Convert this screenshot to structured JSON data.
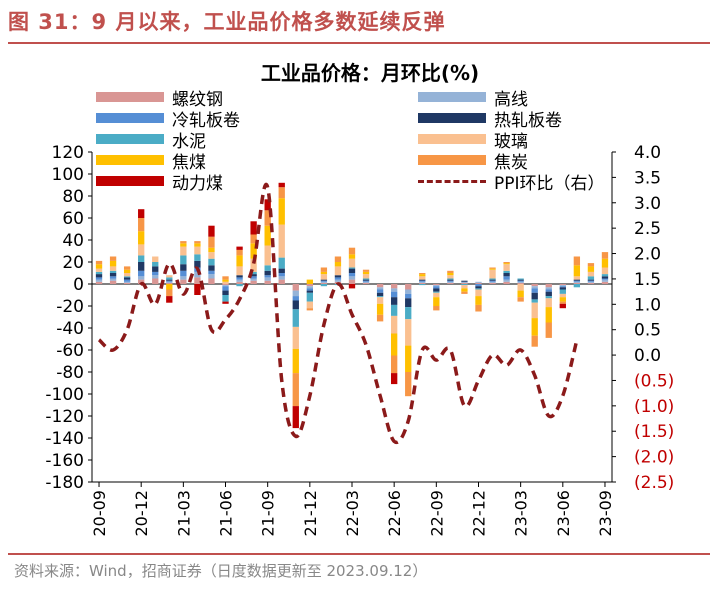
{
  "figure_title": "图 31：9 月以来，工业品价格多数延续反弹",
  "source": "资料来源：Wind，招商证券（日度数据更新至 2023.09.12）",
  "chart_data": {
    "type": "bar",
    "stacked": true,
    "title": "工业品价格：月环比(%)",
    "xlabel": "",
    "ylabel": "",
    "ylim": [
      -180,
      120
    ],
    "y2lim": [
      -2.5,
      4.0
    ],
    "yticks": [
      -180,
      -160,
      -140,
      -120,
      -100,
      -80,
      -60,
      -40,
      -20,
      0,
      20,
      40,
      60,
      80,
      100,
      120
    ],
    "y2ticks": [
      "(2.5)",
      "(2.0)",
      "(1.5)",
      "(1.0)",
      "(0.5)",
      "0.0",
      "0.5",
      "1.0",
      "1.5",
      "2.0",
      "2.5",
      "3.0",
      "3.5",
      "4.0"
    ],
    "y2tick_values": [
      -2.5,
      -2.0,
      -1.5,
      -1.0,
      -0.5,
      0.0,
      0.5,
      1.0,
      1.5,
      2.0,
      2.5,
      3.0,
      3.5,
      4.0
    ],
    "x_tick_labels": [
      "20-09",
      "20-12",
      "21-03",
      "21-06",
      "21-09",
      "21-12",
      "22-03",
      "22-06",
      "22-09",
      "22-12",
      "23-03",
      "23-06",
      "23-09"
    ],
    "categories": [
      "20-09",
      "20-10",
      "20-11",
      "20-12",
      "21-01",
      "21-02",
      "21-03",
      "21-04",
      "21-05",
      "21-06",
      "21-07",
      "21-08",
      "21-09",
      "21-10",
      "21-11",
      "21-12",
      "22-01",
      "22-02",
      "22-03",
      "22-04",
      "22-05",
      "22-06",
      "22-07",
      "22-08",
      "22-09",
      "22-10",
      "22-11",
      "22-12",
      "23-01",
      "23-02",
      "23-03",
      "23-04",
      "23-05",
      "23-06",
      "23-07",
      "23-08",
      "23-09"
    ],
    "legend_position": "top",
    "grid": false,
    "series": [
      {
        "name": "螺纹钢",
        "color": "#d99694",
        "values": [
          2,
          3,
          1,
          4,
          5,
          1,
          4,
          6,
          5,
          -1,
          2,
          3,
          3,
          4,
          -6,
          -2,
          1,
          2,
          4,
          1,
          -3,
          -4,
          -5,
          1,
          -1,
          1,
          1,
          1,
          1,
          2,
          1,
          -2,
          -3,
          -1,
          1,
          1,
          2
        ]
      },
      {
        "name": "高线",
        "color": "#95b3d7",
        "values": [
          2,
          2,
          1,
          3,
          3,
          1,
          3,
          5,
          4,
          -1,
          2,
          2,
          3,
          3,
          -5,
          -2,
          1,
          2,
          3,
          1,
          -2,
          -3,
          -4,
          1,
          -1,
          1,
          1,
          1,
          1,
          2,
          1,
          -2,
          -2,
          -1,
          1,
          1,
          2
        ]
      },
      {
        "name": "冷轧板卷",
        "color": "#558ed5",
        "values": [
          2,
          2,
          2,
          5,
          3,
          1,
          5,
          4,
          3,
          -4,
          2,
          2,
          2,
          3,
          -4,
          -2,
          1,
          2,
          3,
          1,
          -3,
          -5,
          -4,
          1,
          -2,
          1,
          0,
          -2,
          1,
          3,
          1,
          -4,
          -2,
          -1,
          1,
          1,
          1
        ]
      },
      {
        "name": "热轧板卷",
        "color": "#1f3864",
        "values": [
          3,
          3,
          2,
          8,
          5,
          1,
          6,
          6,
          5,
          -4,
          2,
          2,
          4,
          4,
          -8,
          -2,
          1,
          2,
          4,
          1,
          -3,
          -7,
          -8,
          1,
          -3,
          1,
          1,
          -2,
          1,
          3,
          1,
          -6,
          -4,
          -2,
          1,
          1,
          2
        ]
      },
      {
        "name": "水泥",
        "color": "#4bacc6",
        "values": [
          2,
          2,
          1,
          6,
          4,
          2,
          8,
          6,
          6,
          -6,
          -2,
          2,
          5,
          10,
          -16,
          -8,
          -2,
          -1,
          1,
          1,
          -1,
          -10,
          -11,
          -1,
          -1,
          1,
          -1,
          -1,
          1,
          2,
          1,
          -3,
          -2,
          -4,
          -3,
          3,
          2
        ]
      },
      {
        "name": "玻璃",
        "color": "#fac090",
        "values": [
          3,
          4,
          3,
          10,
          5,
          2,
          8,
          7,
          6,
          2,
          8,
          12,
          18,
          30,
          -20,
          -6,
          5,
          8,
          8,
          4,
          -6,
          -16,
          -24,
          3,
          -4,
          3,
          -3,
          -6,
          8,
          6,
          -6,
          -14,
          -8,
          -3,
          3,
          4,
          6
        ]
      },
      {
        "name": "焦煤",
        "color": "#ffc000",
        "values": [
          4,
          5,
          3,
          12,
          0,
          -5,
          3,
          3,
          4,
          2,
          10,
          14,
          18,
          24,
          -22,
          4,
          2,
          4,
          4,
          2,
          -10,
          -20,
          -24,
          2,
          -8,
          2,
          -3,
          -8,
          1,
          1,
          -6,
          -16,
          -14,
          -4,
          10,
          5,
          8
        ]
      },
      {
        "name": "焦炭",
        "color": "#f79646",
        "values": [
          3,
          4,
          3,
          12,
          0,
          -6,
          2,
          2,
          10,
          3,
          5,
          8,
          14,
          10,
          -30,
          -2,
          4,
          5,
          6,
          2,
          -6,
          -16,
          -22,
          1,
          -4,
          2,
          -2,
          -6,
          1,
          1,
          -4,
          -10,
          -14,
          -2,
          8,
          3,
          6
        ]
      },
      {
        "name": "动力煤",
        "color": "#c00000",
        "values": [
          0,
          0,
          0,
          8,
          0,
          -6,
          0,
          -10,
          10,
          -2,
          3,
          12,
          10,
          4,
          -20,
          0,
          0,
          0,
          -4,
          0,
          0,
          -10,
          0,
          0,
          0,
          0,
          0,
          0,
          0,
          0,
          0,
          0,
          0,
          -4,
          0,
          0,
          0
        ]
      }
    ],
    "line_series": [
      {
        "name": "PPI环比（右）",
        "color": "#8b1a1a",
        "axis": "right",
        "x": [
          "20-09",
          "20-10",
          "20-11",
          "20-12",
          "21-01",
          "21-02",
          "21-03",
          "21-04",
          "21-05",
          "21-06",
          "21-07",
          "21-08",
          "21-09",
          "21-10",
          "21-11",
          "21-12",
          "22-01",
          "22-02",
          "22-03",
          "22-04",
          "22-05",
          "22-06",
          "22-07",
          "22-08",
          "22-09",
          "22-10",
          "22-11",
          "22-12",
          "23-01",
          "23-02",
          "23-03",
          "23-04",
          "23-05",
          "23-06",
          "23-07",
          "23-08",
          "23-09"
        ],
        "values": [
          0.3,
          0.1,
          0.5,
          1.4,
          1.0,
          1.8,
          1.2,
          1.7,
          0.5,
          0.7,
          1.1,
          1.8,
          3.3,
          -0.5,
          -1.6,
          -0.8,
          0.6,
          1.4,
          0.8,
          0.2,
          -0.8,
          -1.7,
          -1.3,
          0.1,
          -0.1,
          0.1,
          -1.0,
          -0.5,
          0.0,
          -0.2,
          0.1,
          -0.4,
          -1.2,
          -0.8,
          0.3,
          null,
          null
        ]
      }
    ]
  }
}
